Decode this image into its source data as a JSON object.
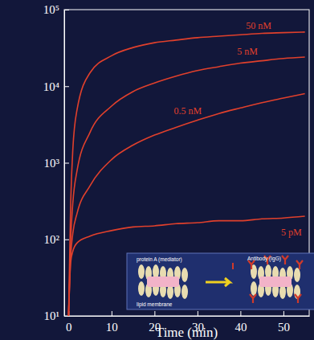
{
  "chart_data": {
    "type": "line",
    "xlabel": "Time (min)",
    "log": "y",
    "x": [
      0,
      0.5,
      1,
      2,
      5,
      10,
      15,
      20,
      25,
      30,
      35,
      40,
      45,
      50,
      55
    ],
    "xlim": [
      -1,
      56
    ],
    "xticks": [
      0,
      10,
      20,
      30,
      40,
      50
    ],
    "ylim": [
      10,
      100000
    ],
    "yticks": [
      {
        "value": 10,
        "label": "10¹"
      },
      {
        "value": 100,
        "label": "10²"
      },
      {
        "value": 1000,
        "label": "10³"
      },
      {
        "value": 10000,
        "label": "10⁴"
      },
      {
        "value": 100000,
        "label": "10⁵"
      }
    ],
    "series": [
      {
        "name": "50 nM",
        "color": "#e0402c",
        "values": [
          10,
          300,
          1500,
          5000,
          15000,
          25000,
          32000,
          37000,
          40000,
          43000,
          45000,
          47000,
          49000,
          50000,
          51000
        ]
      },
      {
        "name": "5 nM",
        "color": "#e0402c",
        "values": [
          10,
          100,
          300,
          800,
          2500,
          5500,
          8500,
          11000,
          13500,
          16000,
          18000,
          20000,
          21500,
          23000,
          24000
        ]
      },
      {
        "name": "0.5 nM",
        "color": "#e0402c",
        "values": [
          10,
          60,
          120,
          220,
          500,
          1100,
          1700,
          2300,
          2900,
          3600,
          4400,
          5200,
          6100,
          7000,
          8000
        ]
      },
      {
        "name": "5 pM",
        "color": "#e0402c",
        "values": [
          10,
          50,
          70,
          90,
          110,
          130,
          145,
          150,
          160,
          165,
          175,
          175,
          185,
          190,
          200
        ]
      }
    ],
    "annotations": [
      "protein A (mediator)",
      "Antibody (IgG)",
      "lipid membrane"
    ]
  }
}
